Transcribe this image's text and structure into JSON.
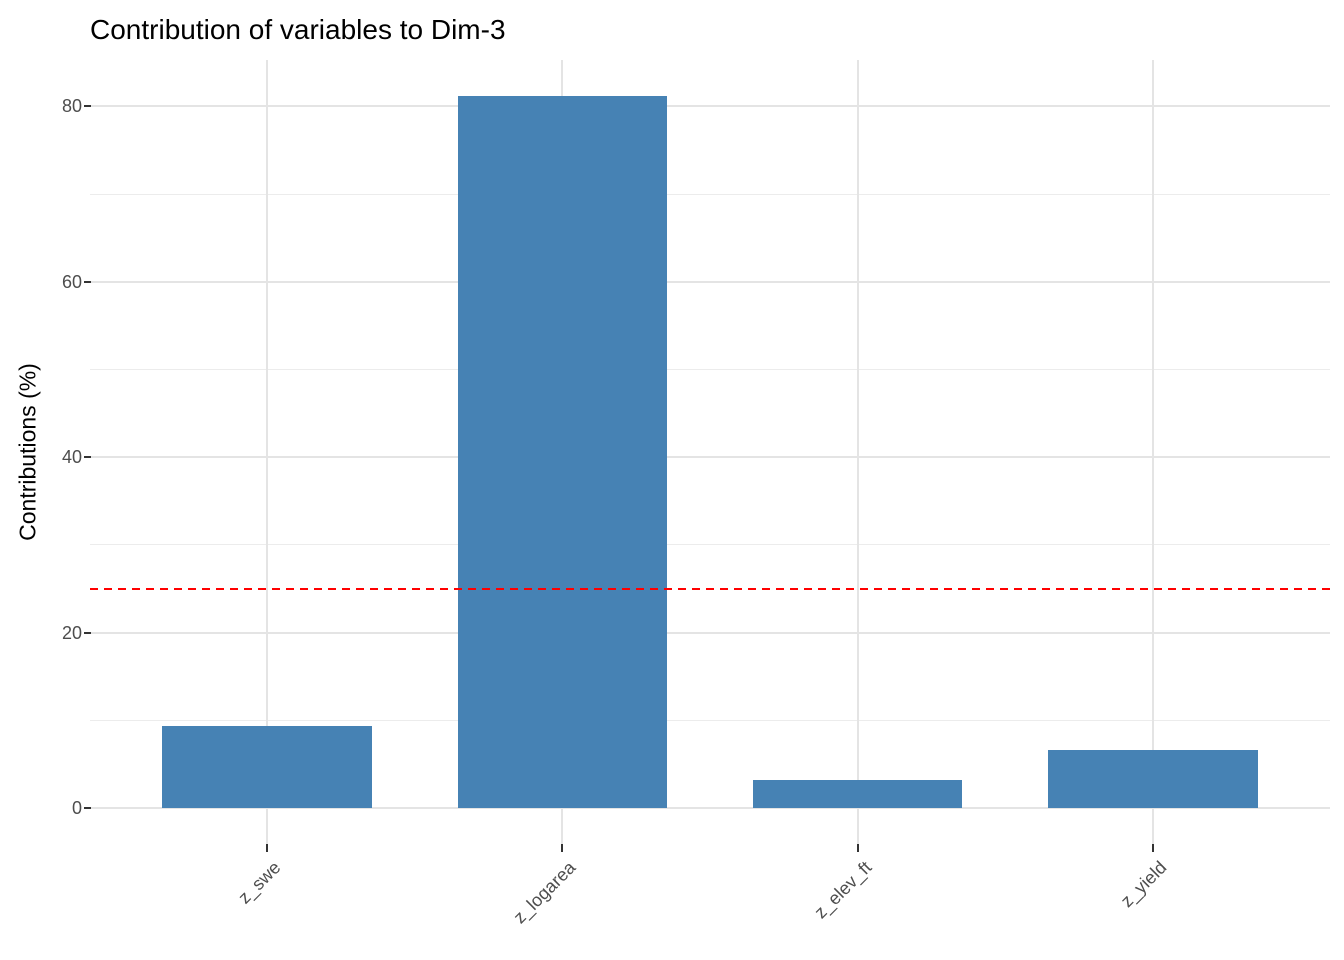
{
  "chart_data": {
    "type": "bar",
    "title": "Contribution of variables to Dim-3",
    "categories": [
      "z_swe",
      "z_logarea",
      "z_elev_ft",
      "z_yield"
    ],
    "values": [
      9.3,
      81.2,
      3.2,
      6.6
    ],
    "xlabel": "",
    "ylabel": "Contributions (%)",
    "ylim": [
      -4.1,
      85.3
    ],
    "y_ticks": [
      0,
      20,
      40,
      60,
      80
    ],
    "y_minor_ticks": [
      10,
      30,
      50,
      70
    ],
    "x_tick_angle": 45,
    "grid": "on",
    "legend": "none",
    "reference_line": {
      "value": 25,
      "style": "dashed",
      "color": "#ff0000"
    },
    "bar_color": "#4682b4",
    "bar_width_ratio": 0.71
  },
  "colors": {
    "background": "#ffffff",
    "bar": "#4682b4",
    "reference_line": "#ff0000",
    "grid_major": "#e4e4e4",
    "grid_minor": "#ececec",
    "axis_text": "#4d4d4d",
    "axis_title": "#000000",
    "tick_mark": "#333333"
  }
}
